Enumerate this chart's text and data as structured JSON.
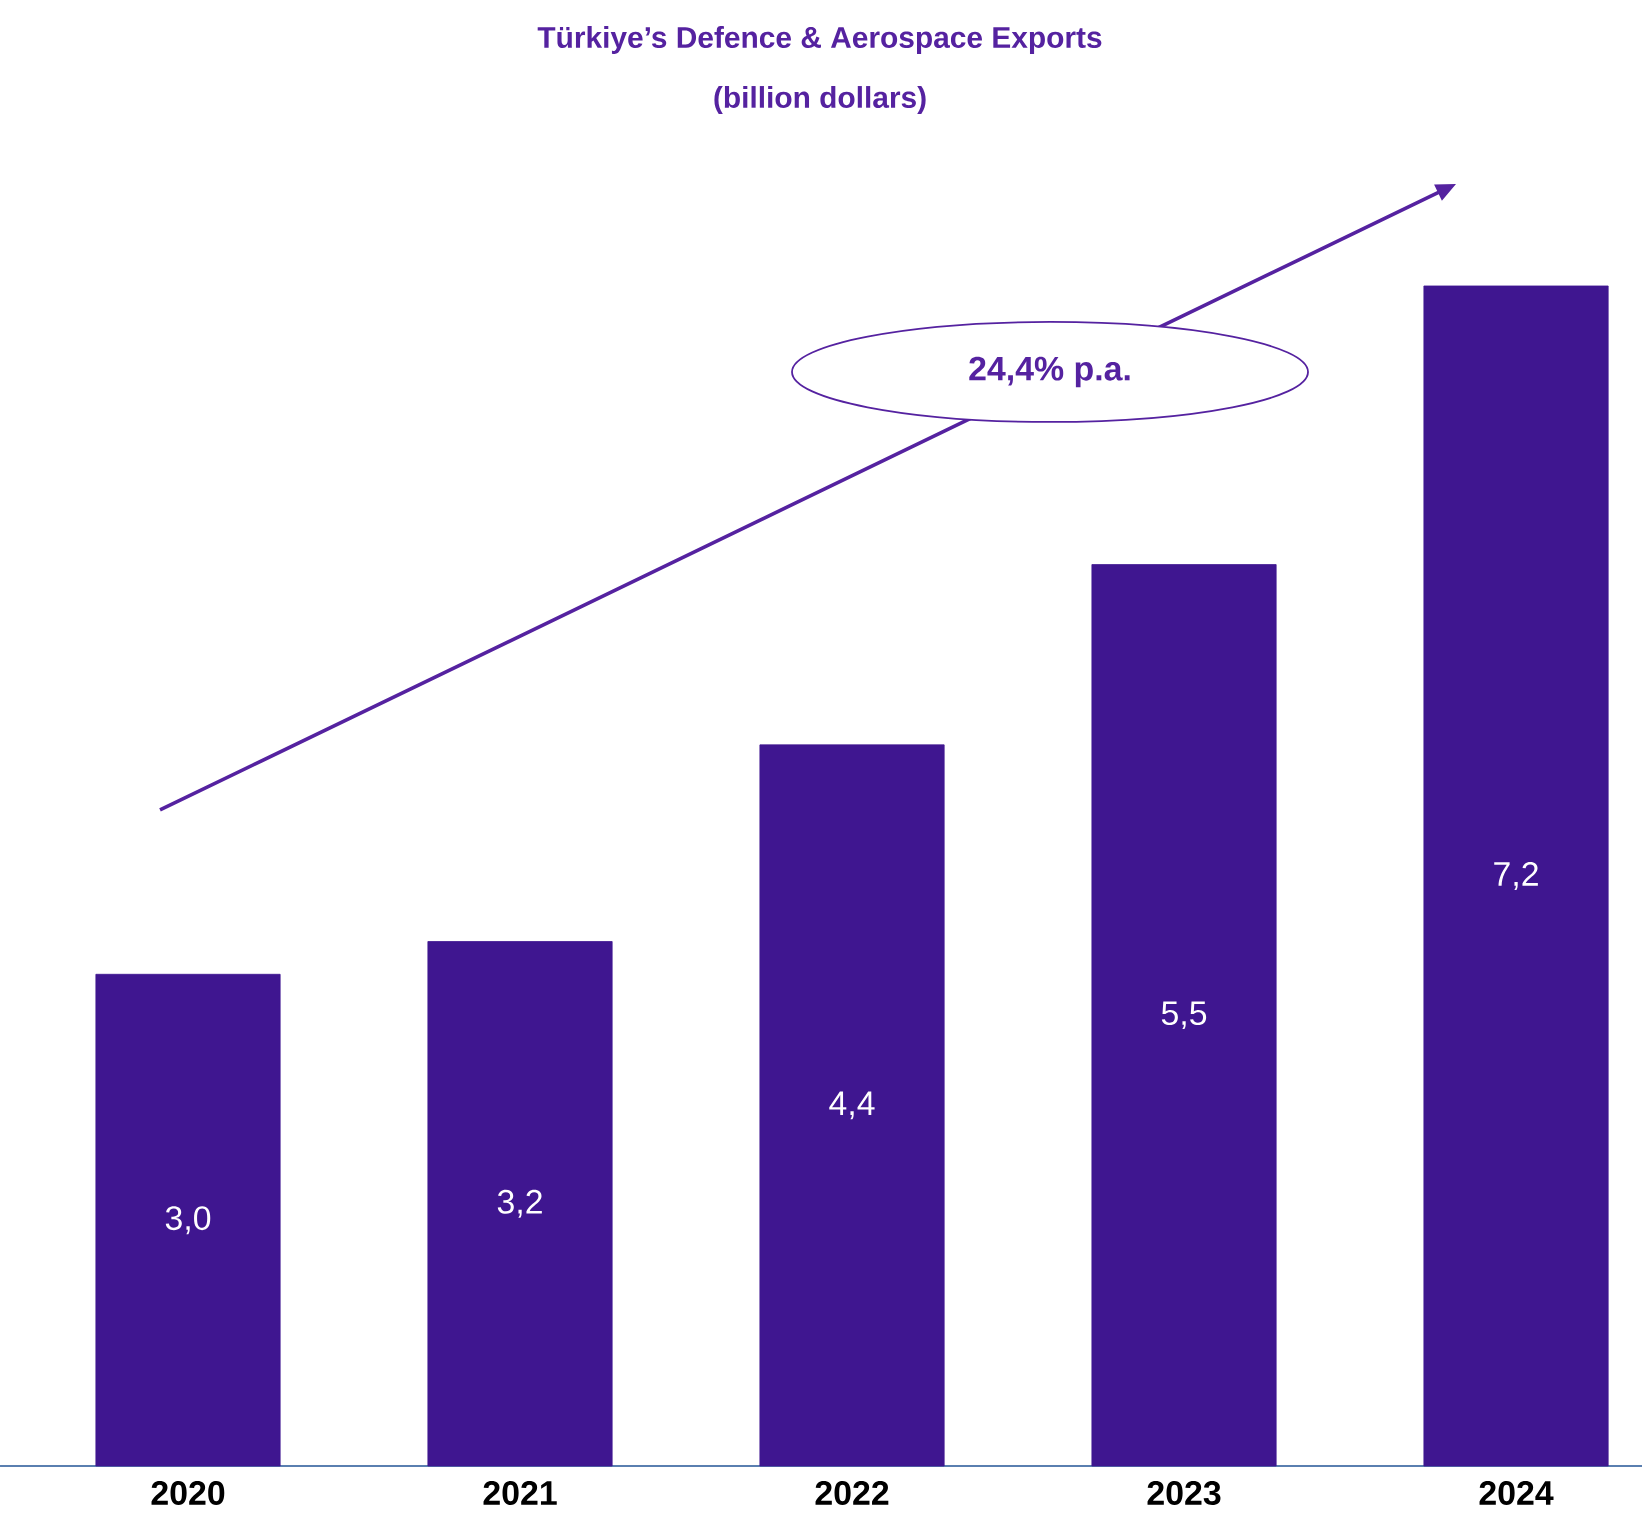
{
  "chart_data": {
    "type": "bar",
    "title": "Türkiye’s Defence & Aerospace Exports",
    "subtitle": "(billion dollars)",
    "categories": [
      "2020",
      "2021",
      "2022",
      "2023",
      "2024"
    ],
    "values": [
      3.0,
      3.2,
      4.4,
      5.5,
      7.2
    ],
    "value_labels": [
      "3,0",
      "3,2",
      "4,4",
      "5,5",
      "7,2"
    ],
    "color": "#3f1690",
    "annotations": [
      "24,4% p.a."
    ]
  }
}
